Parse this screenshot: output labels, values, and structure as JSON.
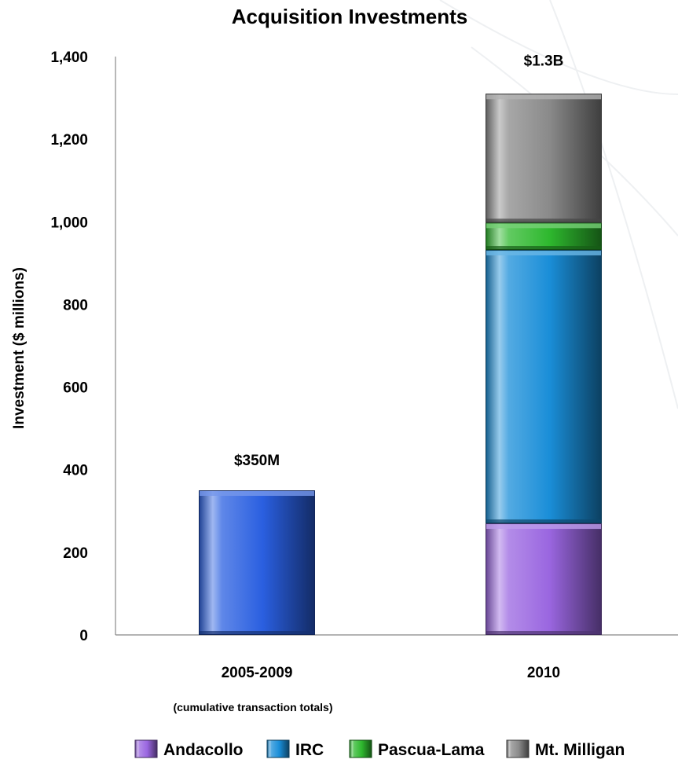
{
  "chart_data": {
    "type": "bar",
    "stacked": true,
    "title": "Acquisition Investments",
    "ylabel": "Investment ($ millions)",
    "ylim": [
      0,
      1400
    ],
    "yticks": [
      0,
      200,
      400,
      600,
      800,
      1000,
      1200,
      1400
    ],
    "ytick_labels": [
      "0",
      "200",
      "400",
      "600",
      "800",
      "1,000",
      "1,200",
      "1,400"
    ],
    "categories": [
      "2005-2009",
      "2010"
    ],
    "category_sublabels": [
      "(cumulative transaction totals)",
      ""
    ],
    "totals": [
      "$350M",
      "$1.3B"
    ],
    "bars": [
      {
        "category": "2005-2009",
        "segments": [
          {
            "value": 350,
            "color": "#2a5fe0"
          }
        ]
      },
      {
        "category": "2010",
        "segments": [
          {
            "name": "Andacollo",
            "value": 270,
            "color": "#9a66e0"
          },
          {
            "name": "IRC",
            "value": 662,
            "color": "#1a8ed8"
          },
          {
            "name": "Pascua-Lama",
            "value": 66,
            "color": "#2eb82e"
          },
          {
            "name": "Mt. Milligan",
            "value": 312,
            "color": "#8a8a8a"
          }
        ]
      }
    ],
    "legend": {
      "position": "bottom",
      "items": [
        {
          "name": "Andacollo",
          "color": "#9a66e0"
        },
        {
          "name": "IRC",
          "color": "#1a8ed8"
        },
        {
          "name": "Pascua-Lama",
          "color": "#2eb82e"
        },
        {
          "name": "Mt. Milligan",
          "color": "#8a8a8a"
        }
      ]
    },
    "grid": false
  }
}
